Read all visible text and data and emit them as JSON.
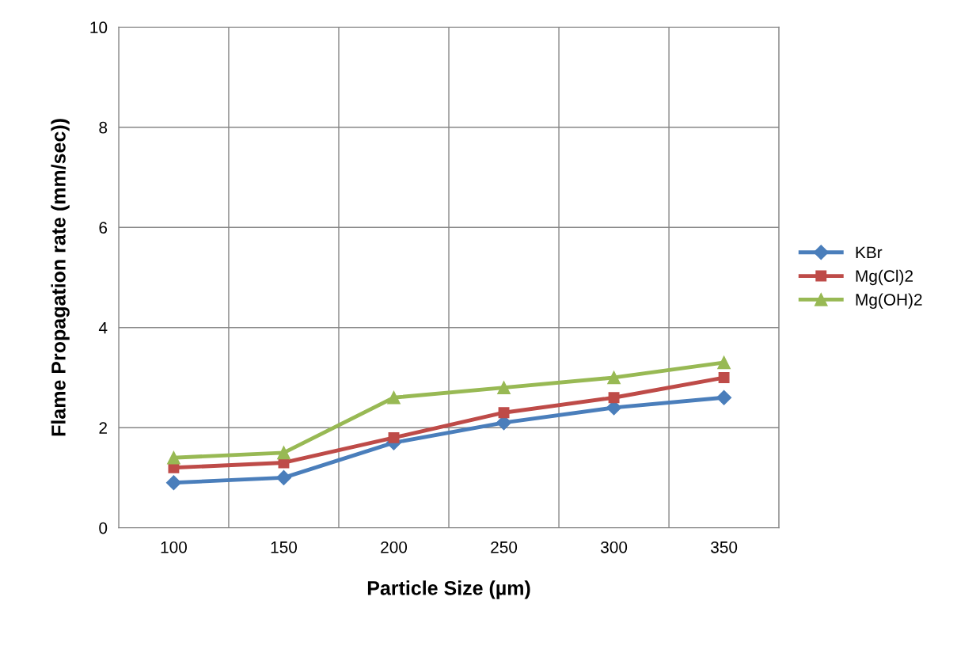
{
  "chart_data": {
    "type": "line",
    "xlabel": "Particle Size (µm)",
    "ylabel": "Flame Propagation rate (mm/sec))",
    "categories": [
      "100",
      "150",
      "200",
      "250",
      "300",
      "350"
    ],
    "series": [
      {
        "name": "KBr",
        "color": "#4a7ebb",
        "marker": "diamond",
        "values": [
          0.9,
          1.0,
          1.7,
          2.1,
          2.4,
          2.6
        ]
      },
      {
        "name": "Mg(Cl)2",
        "color": "#be4b48",
        "marker": "square",
        "values": [
          1.2,
          1.3,
          1.8,
          2.3,
          2.6,
          3.0
        ]
      },
      {
        "name": "Mg(OH)2",
        "color": "#98b954",
        "marker": "triangle",
        "values": [
          1.4,
          1.5,
          2.6,
          2.8,
          3.0,
          3.3
        ]
      }
    ],
    "ylim": [
      0,
      10
    ],
    "yticks": [
      0,
      2,
      4,
      6,
      8,
      10
    ],
    "grid": true,
    "legend": "right",
    "line_style": "solid"
  }
}
